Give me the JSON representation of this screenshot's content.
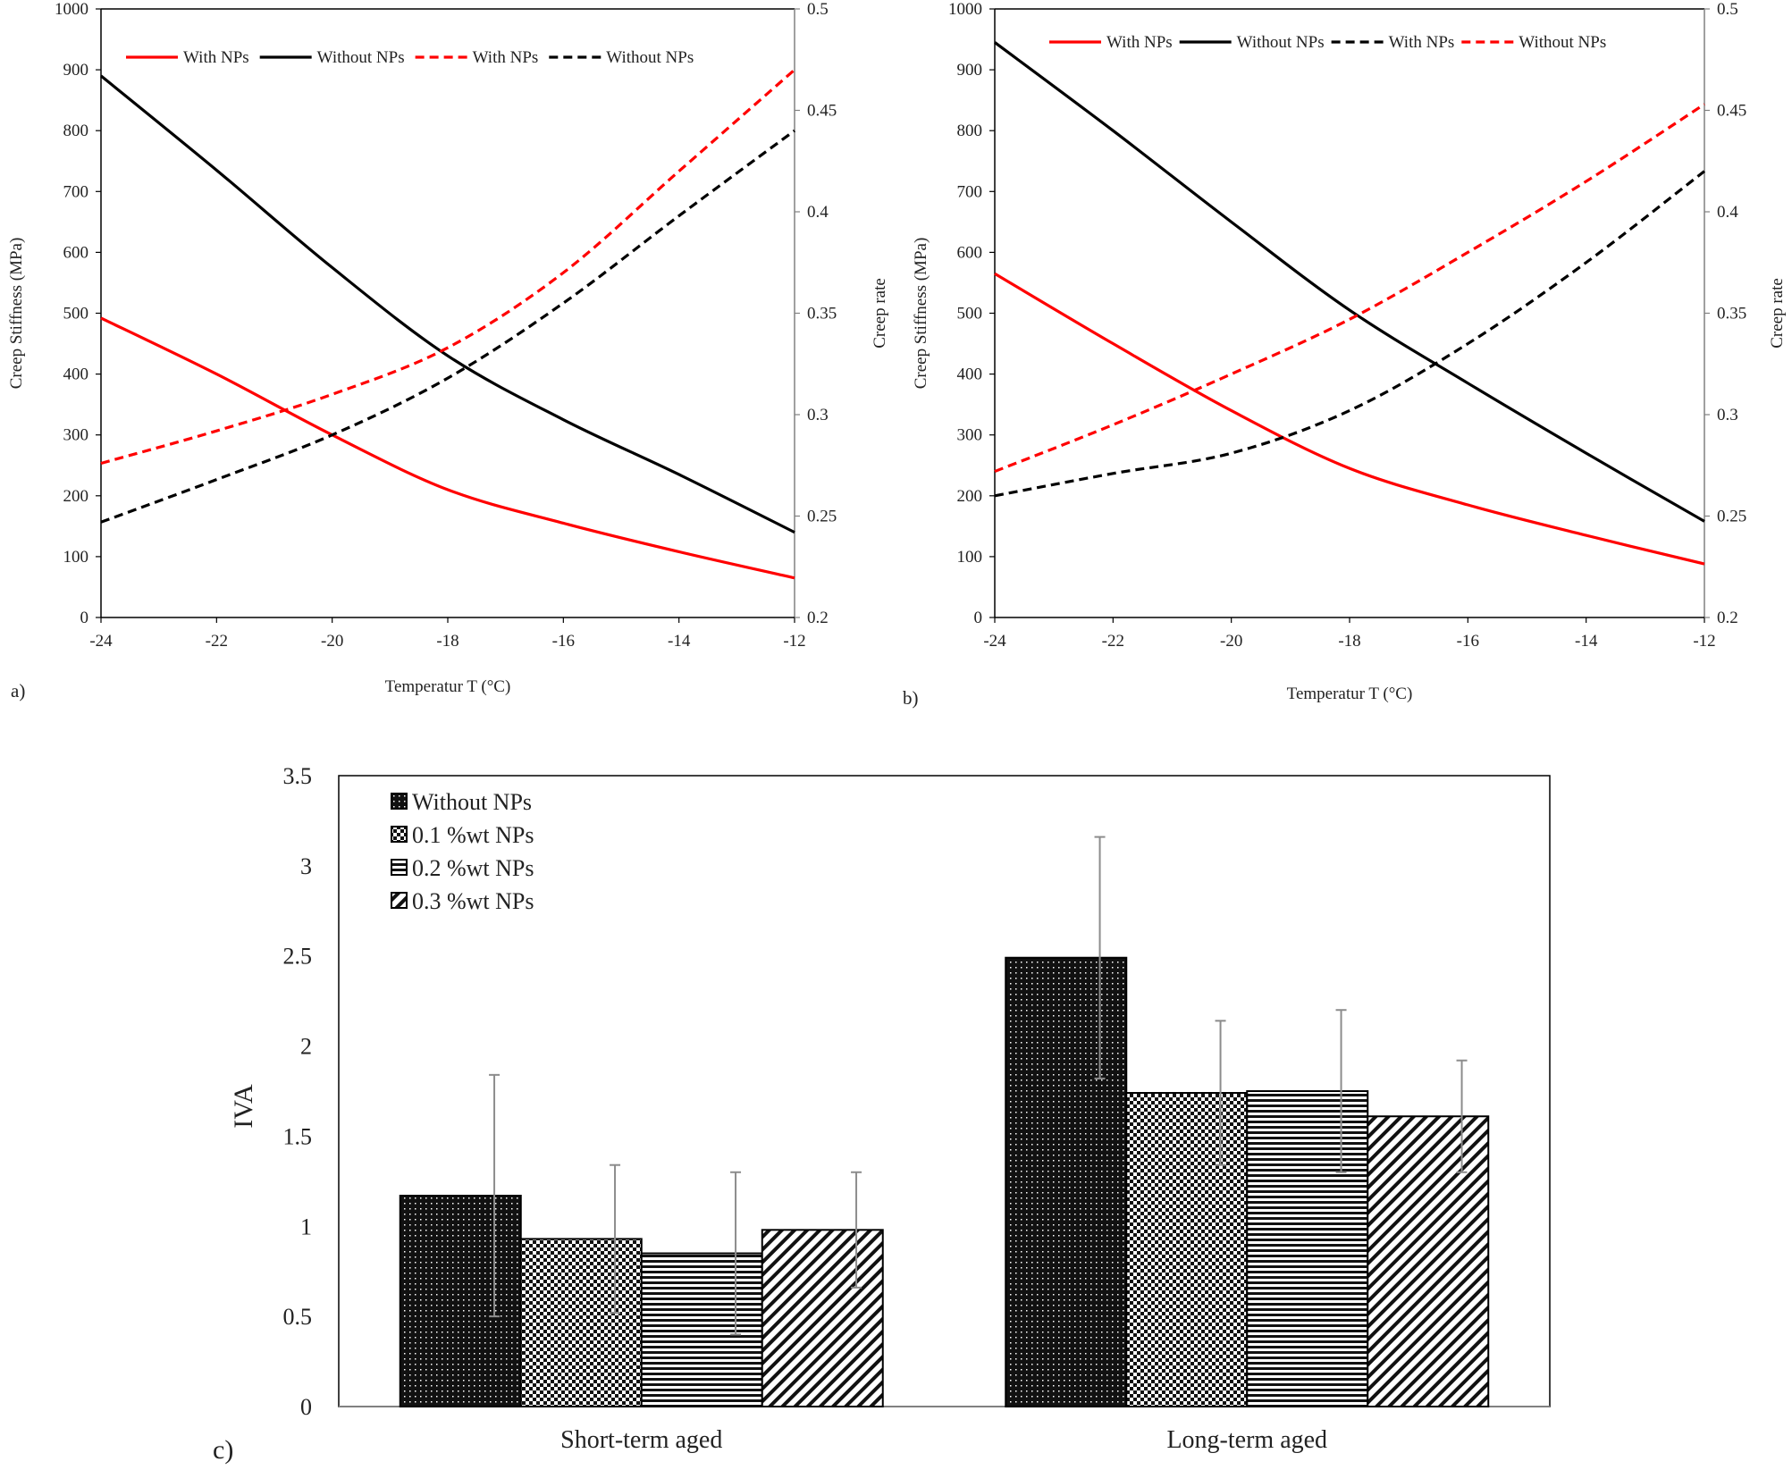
{
  "colors": {
    "red": "#ff0000",
    "black": "#000000",
    "axis": "#808080",
    "error_bar": "#8c8c8c"
  },
  "chart_data": [
    {
      "type": "line",
      "panel_label": "a)",
      "xlabel": "Temperatur T (°C)",
      "ylabel": "Creep Stiffness (MPa)",
      "ylabel_right": "Creep rate",
      "xlim": [
        -24,
        -12
      ],
      "ylim": [
        0,
        1000
      ],
      "ylim_right": [
        0.2,
        0.5
      ],
      "xticks": [
        "-24",
        "-22",
        "-20",
        "-18",
        "-16",
        "-14",
        "-12"
      ],
      "yticks": [
        "0",
        "100",
        "200",
        "300",
        "400",
        "500",
        "600",
        "700",
        "800",
        "900",
        "1000"
      ],
      "yticks_right": [
        "0.2",
        "0.25",
        "0.3",
        "0.35",
        "0.4",
        "0.45",
        "0.5"
      ],
      "grid": false,
      "legend_placement": "top",
      "x": [
        -24,
        -22,
        -20,
        -18,
        -16,
        -14,
        -12
      ],
      "series": [
        {
          "name": "With NPs",
          "axis": "left",
          "style": "solid",
          "color": "#ff0000",
          "values": [
            492,
            400,
            300,
            210,
            155,
            108,
            65
          ]
        },
        {
          "name": "Without NPs",
          "axis": "left",
          "style": "solid",
          "color": "#000000",
          "values": [
            890,
            735,
            575,
            430,
            325,
            235,
            140
          ]
        },
        {
          "name": "With NPs",
          "axis": "right",
          "style": "dashed",
          "color": "#ff0000",
          "values": [
            0.276,
            0.292,
            0.31,
            0.333,
            0.37,
            0.42,
            0.47
          ]
        },
        {
          "name": "Without NPs",
          "axis": "right",
          "style": "dashed",
          "color": "#000000",
          "values": [
            0.247,
            0.268,
            0.29,
            0.318,
            0.355,
            0.398,
            0.44
          ]
        }
      ]
    },
    {
      "type": "line",
      "panel_label": "b)",
      "xlabel": "Temperatur T (°C)",
      "ylabel": "Creep Stiffness (MPa)",
      "ylabel_right": "Creep rate",
      "xlim": [
        -24,
        -12
      ],
      "ylim": [
        0,
        1000
      ],
      "ylim_right": [
        0.2,
        0.5
      ],
      "xticks": [
        "-24",
        "-22",
        "-20",
        "-18",
        "-16",
        "-14",
        "-12"
      ],
      "yticks": [
        "0",
        "100",
        "200",
        "300",
        "400",
        "500",
        "600",
        "700",
        "800",
        "900",
        "1000"
      ],
      "yticks_right": [
        "0.2",
        "0.25",
        "0.3",
        "0.35",
        "0.4",
        "0.45",
        "0.5"
      ],
      "grid": false,
      "legend_placement": "top",
      "x": [
        -24,
        -22,
        -20,
        -18,
        -16,
        -14,
        -12
      ],
      "series": [
        {
          "name": "With NPs",
          "axis": "left",
          "style": "solid",
          "color": "#ff0000",
          "values": [
            565,
            450,
            340,
            245,
            185,
            135,
            88
          ]
        },
        {
          "name": "Without NPs",
          "axis": "left",
          "style": "solid",
          "color": "#000000",
          "values": [
            945,
            800,
            650,
            505,
            385,
            270,
            158
          ]
        },
        {
          "name": "With NPs",
          "axis": "right",
          "style": "dashed",
          "color": "#000000",
          "values": [
            0.26,
            0.271,
            0.281,
            0.302,
            0.335,
            0.375,
            0.42
          ]
        },
        {
          "name": "Without NPs",
          "axis": "right",
          "style": "dashed",
          "color": "#ff0000",
          "values": [
            0.272,
            0.295,
            0.32,
            0.347,
            0.38,
            0.415,
            0.453
          ]
        }
      ]
    },
    {
      "type": "bar",
      "panel_label": "c)",
      "xlabel": "",
      "ylabel": "IVA",
      "ylim": [
        0,
        3.5
      ],
      "yticks": [
        "0",
        "0.5",
        "1",
        "1.5",
        "2",
        "2.5",
        "3",
        "3.5"
      ],
      "grid": false,
      "legend_placement": "top-left",
      "categories": [
        "Short-term aged",
        "Long-term aged"
      ],
      "series": [
        {
          "name": "Without NPs",
          "pattern": "dots",
          "values": [
            1.17,
            2.49
          ],
          "errors": [
            0.67,
            0.67
          ]
        },
        {
          "name": "0.1 %wt NPs",
          "pattern": "checker",
          "values": [
            0.93,
            1.74
          ],
          "errors": [
            0.41,
            0.4
          ]
        },
        {
          "name": "0.2 %wt NPs",
          "pattern": "horizontal-stripes",
          "values": [
            0.85,
            1.75
          ],
          "errors": [
            0.45,
            0.45
          ]
        },
        {
          "name": "0.3 %wt NPs",
          "pattern": "diagonal-stripes",
          "values": [
            0.98,
            1.61
          ],
          "errors": [
            0.32,
            0.31
          ]
        }
      ]
    }
  ]
}
